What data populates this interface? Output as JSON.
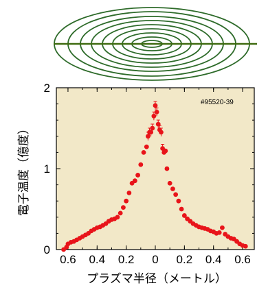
{
  "colors": {
    "plot_background": "#f2e8c8",
    "data_points": "#e8141a",
    "flux_surfaces": "#2e6b2a",
    "midplane_line": "#3f6b10"
  },
  "shot_id": "#95520-39",
  "chart_data": {
    "type": "scatter",
    "title": "",
    "xlabel": "プラズマ半径（メートル）",
    "ylabel": "電子温度（億度）",
    "xlim": [
      -0.68,
      0.68
    ],
    "ylim": [
      0,
      2
    ],
    "x_tick_labels": [
      "0.6",
      "0.4",
      "0.2",
      "0",
      "0.2",
      "0.4",
      "0.6"
    ],
    "x_tick_values": [
      -0.6,
      -0.4,
      -0.2,
      0,
      0.2,
      0.4,
      0.6
    ],
    "y_tick_labels": [
      "0",
      "1",
      "2"
    ],
    "y_tick_values": [
      0,
      1,
      2
    ],
    "grid": false,
    "series": [
      {
        "x": [
          -0.63,
          -0.61,
          -0.6,
          -0.58,
          -0.56,
          -0.54,
          -0.52,
          -0.5,
          -0.48,
          -0.46,
          -0.44,
          -0.42,
          -0.4,
          -0.38,
          -0.36,
          -0.34,
          -0.32,
          -0.3,
          -0.28,
          -0.26,
          -0.24,
          -0.22,
          -0.2,
          -0.18,
          -0.16,
          -0.14,
          -0.12,
          -0.1,
          -0.08,
          -0.06,
          -0.05,
          -0.04,
          -0.03,
          -0.02,
          -0.01,
          0.0,
          0.01,
          0.02,
          0.03,
          0.04,
          0.05,
          0.06,
          0.07,
          0.08,
          0.1,
          0.12,
          0.14,
          0.16,
          0.18,
          0.2,
          0.22,
          0.24,
          0.26,
          0.28,
          0.3,
          0.32,
          0.34,
          0.36,
          0.38,
          0.4,
          0.42,
          0.44,
          0.46,
          0.48,
          0.5,
          0.52,
          0.54,
          0.56,
          0.58,
          0.6,
          0.62
        ],
        "y": [
          0.0,
          0.03,
          0.07,
          0.09,
          0.1,
          0.12,
          0.14,
          0.16,
          0.18,
          0.2,
          0.23,
          0.25,
          0.27,
          0.28,
          0.3,
          0.32,
          0.35,
          0.37,
          0.38,
          0.4,
          0.45,
          0.52,
          0.6,
          0.7,
          0.82,
          0.85,
          0.92,
          1.05,
          1.2,
          1.27,
          1.4,
          1.45,
          1.45,
          1.5,
          1.65,
          1.78,
          1.7,
          1.55,
          1.48,
          1.45,
          1.25,
          1.2,
          1.22,
          1.0,
          0.82,
          0.75,
          0.68,
          0.6,
          0.5,
          0.42,
          0.38,
          0.35,
          0.32,
          0.3,
          0.28,
          0.27,
          0.26,
          0.25,
          0.23,
          0.22,
          0.2,
          0.21,
          0.27,
          0.19,
          0.16,
          0.14,
          0.13,
          0.1,
          0.07,
          0.05,
          0.04
        ]
      }
    ]
  }
}
